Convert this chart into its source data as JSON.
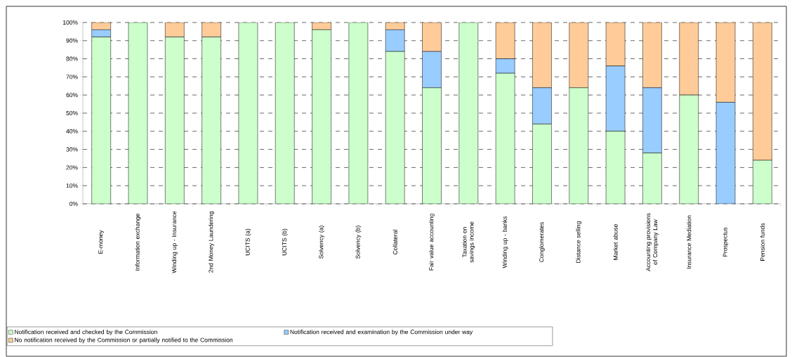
{
  "chart_data": {
    "type": "bar",
    "stacked": true,
    "categories": [
      "E-money",
      "Information exchange",
      "Winding up - Insurance",
      "2nd Money Laundering",
      "UCITS (a)",
      "UCITS (b)",
      "Solvency (a)",
      "Solvency (b)",
      "Collateral",
      "Fair value accounting",
      "Taxation on savings income",
      "Winding up - banks",
      "Conglomerates",
      "Distance selling",
      "Market abuse",
      "Accounting provisions of Company Law",
      "Insurance Mediation",
      "Prospectus",
      "Pension funds"
    ],
    "series": [
      {
        "name": "Notification received and checked by the Commission",
        "color": "#ccffcc",
        "values": [
          92,
          100,
          92,
          92,
          100,
          100,
          96,
          100,
          84,
          64,
          100,
          72,
          44,
          64,
          40,
          28,
          60,
          0,
          24
        ]
      },
      {
        "name": "Notification received and examination by the Commission under way",
        "color": "#99ccff",
        "values": [
          4,
          0,
          0,
          0,
          0,
          0,
          0,
          0,
          12,
          20,
          0,
          8,
          20,
          0,
          36,
          36,
          0,
          56,
          0
        ]
      },
      {
        "name": "No notification received by the Commission or partially notified to the Commission",
        "color": "#ffcc99",
        "values": [
          4,
          0,
          8,
          8,
          0,
          0,
          4,
          0,
          4,
          16,
          0,
          20,
          36,
          36,
          24,
          36,
          40,
          44,
          76
        ]
      }
    ],
    "ylim": [
      0,
      100
    ],
    "yticks": [
      {
        "value": 0,
        "label": "0%"
      },
      {
        "value": 10,
        "label": "10%"
      },
      {
        "value": 20,
        "label": "20%"
      },
      {
        "value": 30,
        "label": "30%"
      },
      {
        "value": 40,
        "label": "40%"
      },
      {
        "value": 50,
        "label": "50%"
      },
      {
        "value": 60,
        "label": "60%"
      },
      {
        "value": 70,
        "label": "70%"
      },
      {
        "value": 80,
        "label": "80%"
      },
      {
        "value": 90,
        "label": "90%"
      },
      {
        "value": 100,
        "label": "100%"
      }
    ],
    "grid": "y",
    "legend": "bottom"
  }
}
